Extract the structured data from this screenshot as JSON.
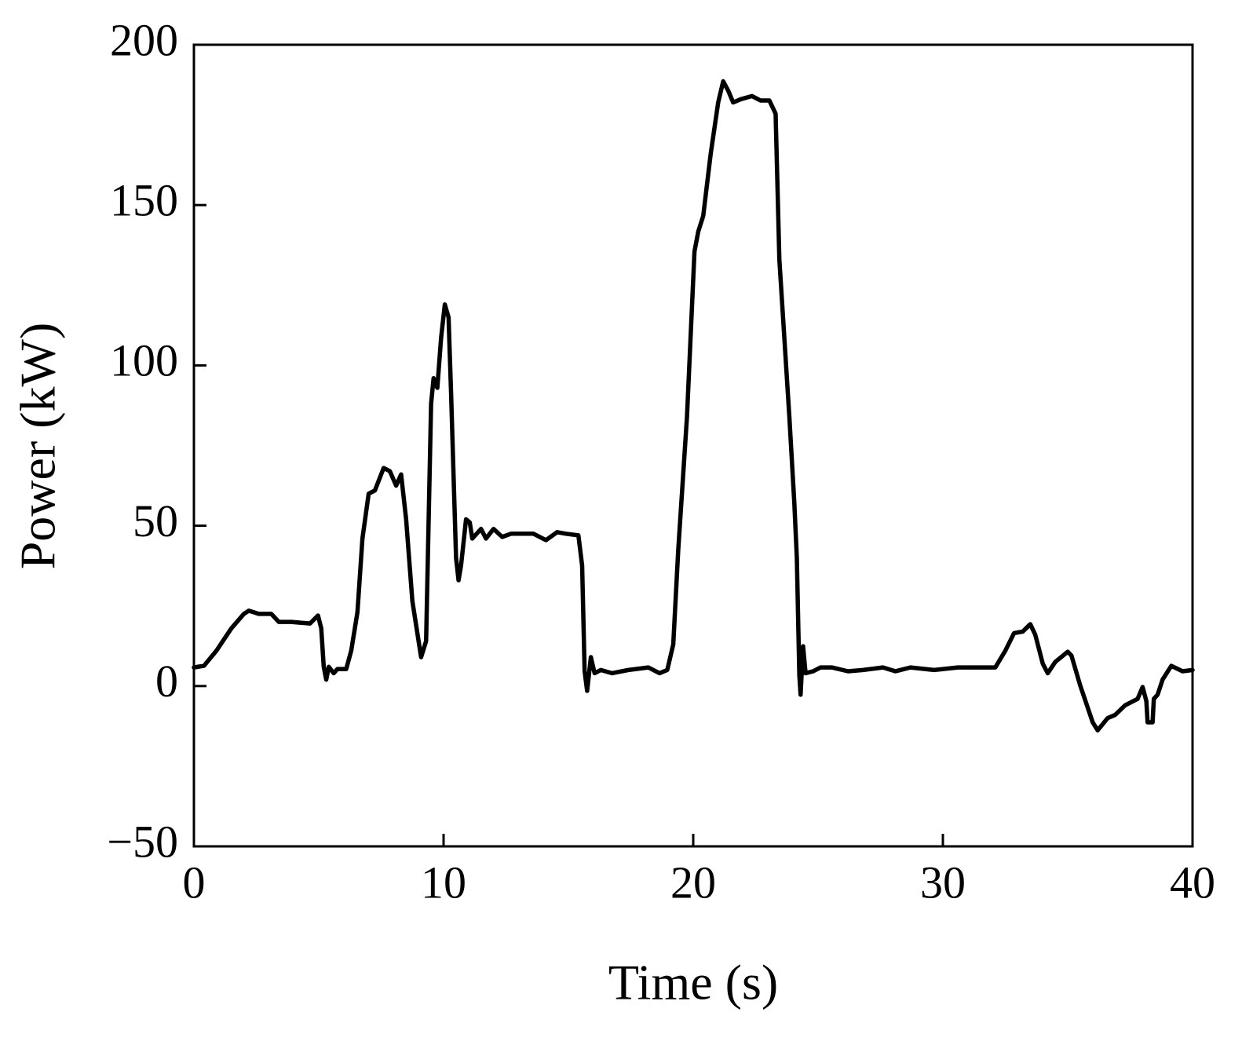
{
  "chart_data": {
    "type": "line",
    "xlabel": "Time (s)",
    "ylabel": "Power (kW)",
    "xlim": [
      0,
      40
    ],
    "xticks": [
      0,
      10,
      20,
      30,
      40
    ],
    "ylim": [
      -50,
      200
    ],
    "yticks": [
      {
        "value": -50,
        "label": "−50"
      },
      0,
      50,
      100,
      150,
      200
    ],
    "grid": false,
    "series": [
      {
        "color": "#000000",
        "x": [
          0,
          0.4,
          0.9,
          1.5,
          2.0,
          2.2,
          2.6,
          3.1,
          3.4,
          3.9,
          4.65,
          4.97,
          5.1,
          5.2,
          5.3,
          5.4,
          5.6,
          5.75,
          6.1,
          6.3,
          6.55,
          6.75,
          7.0,
          7.25,
          7.6,
          7.85,
          8.1,
          8.3,
          8.5,
          8.75,
          9.1,
          9.3,
          9.5,
          9.6,
          9.75,
          9.9,
          10.05,
          10.2,
          10.3,
          10.5,
          10.6,
          10.7,
          10.9,
          11.05,
          11.15,
          11.5,
          11.7,
          12.0,
          12.35,
          12.7,
          13.6,
          14.1,
          14.55,
          14.9,
          15.4,
          15.55,
          15.65,
          15.75,
          15.9,
          16.05,
          16.3,
          16.75,
          17.4,
          18.2,
          18.65,
          18.96,
          19.2,
          19.4,
          19.75,
          20.05,
          20.2,
          20.4,
          20.7,
          21.0,
          21.2,
          21.4,
          21.6,
          21.9,
          22.35,
          22.7,
          23.05,
          23.3,
          23.45,
          23.85,
          24.05,
          24.15,
          24.25,
          24.3,
          24.4,
          24.5,
          24.8,
          25.1,
          25.55,
          26.2,
          26.8,
          27.6,
          28.1,
          28.7,
          29.65,
          30.6,
          31.2,
          32.1,
          32.5,
          32.85,
          33.2,
          33.5,
          33.7,
          34.0,
          34.2,
          34.5,
          35.0,
          35.15,
          35.5,
          36.0,
          36.2,
          36.6,
          36.9,
          37.3,
          37.8,
          38.0,
          38.15,
          38.2,
          38.4,
          38.45,
          38.6,
          38.8,
          39.15,
          39.6,
          40.0
        ],
        "values": [
          5.8,
          6.3,
          11,
          18,
          22.5,
          23.5,
          22.5,
          22.5,
          20,
          20,
          19.5,
          22,
          18,
          6,
          2,
          6,
          4,
          5.3,
          5.3,
          11,
          23,
          46,
          60,
          61,
          68,
          67,
          62.5,
          66,
          52,
          26.5,
          9,
          14,
          88,
          96,
          93,
          108.5,
          119,
          115,
          91.5,
          40,
          33,
          37.6,
          52,
          51,
          46,
          49,
          46,
          49,
          46.5,
          47.5,
          47.5,
          45.5,
          48,
          47.5,
          47,
          37.6,
          4.6,
          -1.5,
          9,
          4,
          5,
          4,
          5,
          5.8,
          4,
          5,
          13,
          42.5,
          84,
          135.5,
          141.7,
          146.6,
          166,
          182,
          188.6,
          185.7,
          182,
          183,
          184,
          182.6,
          182.6,
          178.5,
          133,
          84,
          57,
          40,
          3.4,
          -2.7,
          12.4,
          4,
          4.6,
          5.8,
          5.8,
          4.6,
          5,
          5.8,
          4.6,
          5.8,
          5,
          5.8,
          5.8,
          5.8,
          11,
          16.5,
          17,
          19.3,
          16,
          7,
          4,
          7.5,
          10.7,
          9.5,
          0.2,
          -11.3,
          -13.8,
          -10,
          -9,
          -6,
          -4,
          -0.3,
          -4.7,
          -11.3,
          -11.3,
          -4,
          -2.7,
          2,
          6.3,
          4.6,
          5
        ]
      }
    ]
  }
}
